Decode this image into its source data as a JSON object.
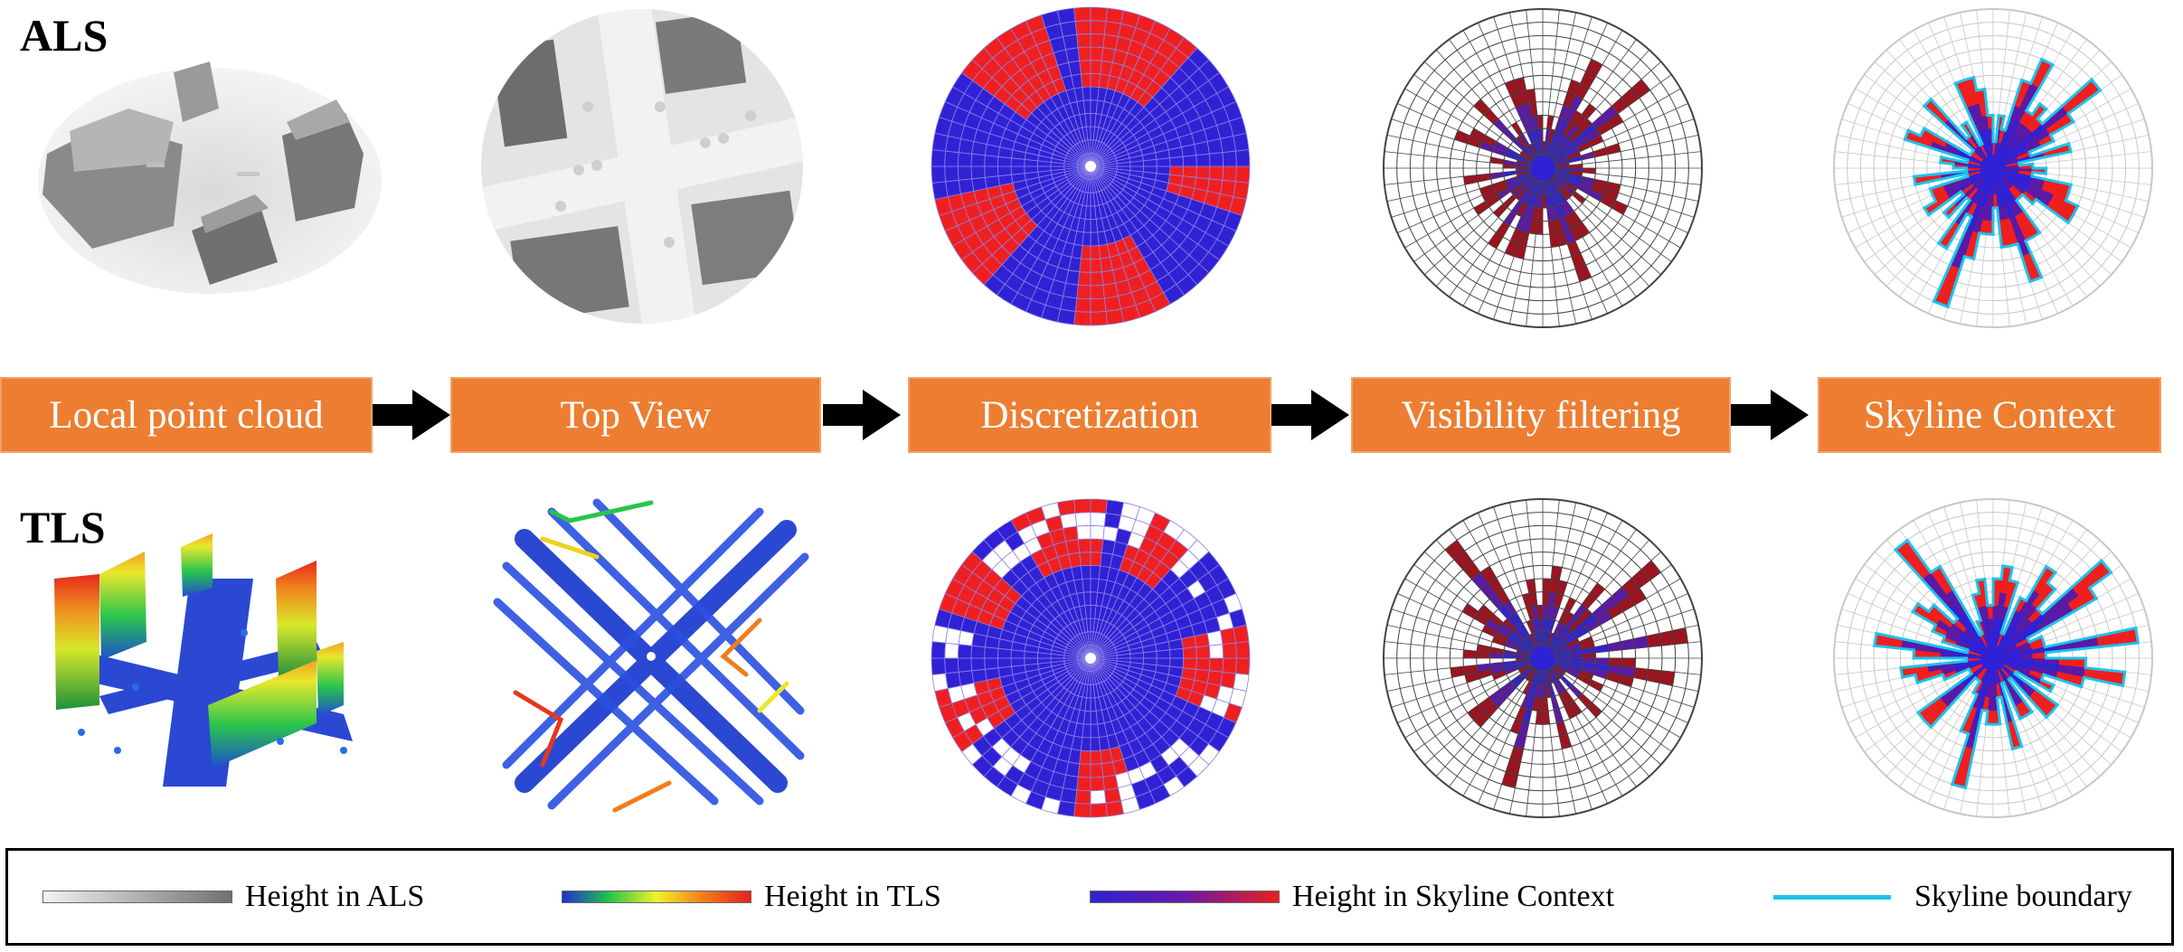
{
  "rows": {
    "top_label": "ALS",
    "bottom_label": "TLS"
  },
  "stages": [
    {
      "label": "Local point cloud"
    },
    {
      "label": "Top View"
    },
    {
      "label": "Discretization"
    },
    {
      "label": "Visibility filtering"
    },
    {
      "label": "Skyline Context"
    }
  ],
  "legend": [
    {
      "label": "Height in ALS",
      "gradient": [
        "#f2f2f2",
        "#707070"
      ]
    },
    {
      "label": "Height in TLS",
      "gradient": [
        "#1f2fd0",
        "#26c44b",
        "#f2f22a",
        "#f07d1d",
        "#e8201c"
      ]
    },
    {
      "label": "Height in Skyline Context",
      "gradient": [
        "#2f22d2",
        "#6a18a8",
        "#e8201c"
      ]
    },
    {
      "label": "Skyline boundary",
      "line_color": "#1cc3ee"
    }
  ],
  "colors": {
    "stage_box": "#ED7D31",
    "als_red": "#f01f1f",
    "blue": "#3022d4",
    "purple": "#5a1aa6",
    "dark_red": "#9b1420"
  }
}
